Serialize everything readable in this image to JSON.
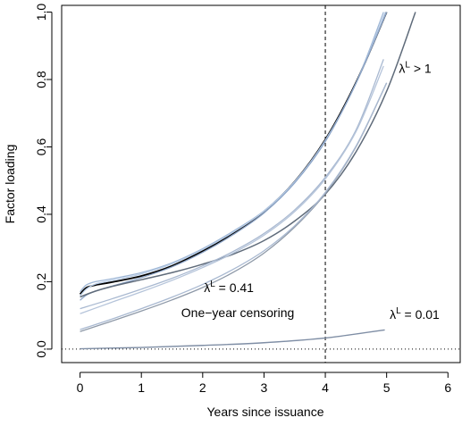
{
  "chart_data": {
    "type": "line",
    "xlabel": "Years since issuance",
    "ylabel": "Factor loading",
    "xlim": [
      -0.3,
      6.2
    ],
    "ylim": [
      -0.04,
      1.02
    ],
    "xticks": [
      "0",
      "1",
      "2",
      "3",
      "4",
      "5",
      "6"
    ],
    "yticks": [
      "0.0",
      "0.2",
      "0.4",
      "0.6",
      "0.8",
      "1.0"
    ],
    "xtick_values": [
      0,
      1,
      2,
      3,
      4,
      5,
      6
    ],
    "ytick_values": [
      0.0,
      0.2,
      0.4,
      0.6,
      0.8,
      1.0
    ],
    "vline": {
      "x": 4,
      "style": "dashed"
    },
    "hline": {
      "y": 0,
      "style": "dotted"
    },
    "annotations": [
      {
        "lambda": "λ",
        "sup": "L",
        "rest": " > 1",
        "x": 5.2,
        "y": 0.82
      },
      {
        "lambda": "λ",
        "sup": "L",
        "rest": " = 0.41",
        "x": 2.02,
        "y": 0.17
      },
      {
        "text": "One−year censoring",
        "x": 1.65,
        "y": 0.095
      },
      {
        "lambda": "λ",
        "sup": "L",
        "rest": " = 0.01",
        "x": 5.05,
        "y": 0.09
      }
    ],
    "series": [
      {
        "color": "#000000",
        "width": 1.8,
        "x": [
          0,
          0.1,
          0.25,
          0.5,
          1,
          1.5,
          2,
          2.5,
          3,
          3.5,
          4,
          4.5,
          5
        ],
        "y": [
          0.163,
          0.182,
          0.19,
          0.198,
          0.217,
          0.247,
          0.291,
          0.344,
          0.408,
          0.497,
          0.622,
          0.791,
          1.0
        ]
      },
      {
        "color": "#9fb7d6",
        "width": 1.3,
        "x": [
          0,
          0.1,
          0.25,
          0.5,
          1,
          1.5,
          2,
          2.5,
          3,
          3.5,
          4,
          4.5,
          4.95
        ],
        "y": [
          0.17,
          0.19,
          0.2,
          0.208,
          0.227,
          0.256,
          0.298,
          0.35,
          0.41,
          0.497,
          0.62,
          0.789,
          1.0
        ]
      },
      {
        "color": "#b8cce6",
        "width": 1.3,
        "x": [
          0,
          0.1,
          0.25,
          0.5,
          1,
          1.5,
          2,
          2.5,
          3,
          3.5,
          4,
          4.5,
          4.98
        ],
        "y": [
          0.158,
          0.178,
          0.193,
          0.203,
          0.223,
          0.253,
          0.295,
          0.347,
          0.409,
          0.496,
          0.618,
          0.788,
          1.0
        ]
      },
      {
        "color": "#8ea6c8",
        "width": 1.3,
        "x": [
          0,
          0.1,
          0.25,
          0.5,
          1,
          1.5,
          2,
          2.5,
          3,
          3.5,
          4,
          4.5,
          5
        ],
        "y": [
          0.145,
          0.16,
          0.172,
          0.186,
          0.212,
          0.244,
          0.287,
          0.34,
          0.404,
          0.493,
          0.616,
          0.789,
          1.0
        ]
      },
      {
        "color": "#5f6b7a",
        "width": 1.5,
        "x": [
          0,
          0.25,
          0.5,
          1,
          1.5,
          2,
          2.5,
          3,
          3.5,
          4,
          4.5,
          5,
          5.47
        ],
        "y": [
          0.155,
          0.172,
          0.185,
          0.206,
          0.227,
          0.252,
          0.282,
          0.322,
          0.38,
          0.46,
          0.585,
          0.765,
          1.0
        ]
      },
      {
        "color": "#a9b9d1",
        "width": 1.3,
        "x": [
          0,
          0.5,
          1,
          1.5,
          2,
          2.5,
          3,
          3.5,
          4,
          4.5,
          4.95
        ],
        "y": [
          0.12,
          0.148,
          0.178,
          0.21,
          0.247,
          0.29,
          0.343,
          0.413,
          0.51,
          0.65,
          0.86
        ]
      },
      {
        "color": "#b5c4da",
        "width": 1.3,
        "x": [
          0,
          0.5,
          1,
          1.5,
          2,
          2.5,
          3,
          3.5,
          4,
          4.5,
          4.95
        ],
        "y": [
          0.105,
          0.138,
          0.17,
          0.204,
          0.242,
          0.285,
          0.338,
          0.408,
          0.505,
          0.645,
          0.84
        ]
      },
      {
        "color": "#8e99a8",
        "width": 1.3,
        "x": [
          0,
          0.5,
          1,
          1.5,
          2,
          2.5,
          3,
          3.5,
          4,
          4.5,
          5
        ],
        "y": [
          0.052,
          0.082,
          0.113,
          0.146,
          0.183,
          0.228,
          0.285,
          0.362,
          0.462,
          0.6,
          0.79
        ]
      },
      {
        "color": "#a9b9d1",
        "width": 1.3,
        "x": [
          0,
          0.5,
          1,
          1.5,
          2,
          2.5,
          3,
          3.5,
          4,
          4.5,
          5
        ],
        "y": [
          0.058,
          0.088,
          0.12,
          0.154,
          0.192,
          0.237,
          0.292,
          0.366,
          0.465,
          0.602,
          0.79
        ]
      },
      {
        "color": "#7f8ea5",
        "width": 1.4,
        "x": [
          0,
          1,
          2,
          3,
          4,
          4.97
        ],
        "y": [
          0.001,
          0.005,
          0.011,
          0.019,
          0.033,
          0.057
        ]
      }
    ]
  }
}
